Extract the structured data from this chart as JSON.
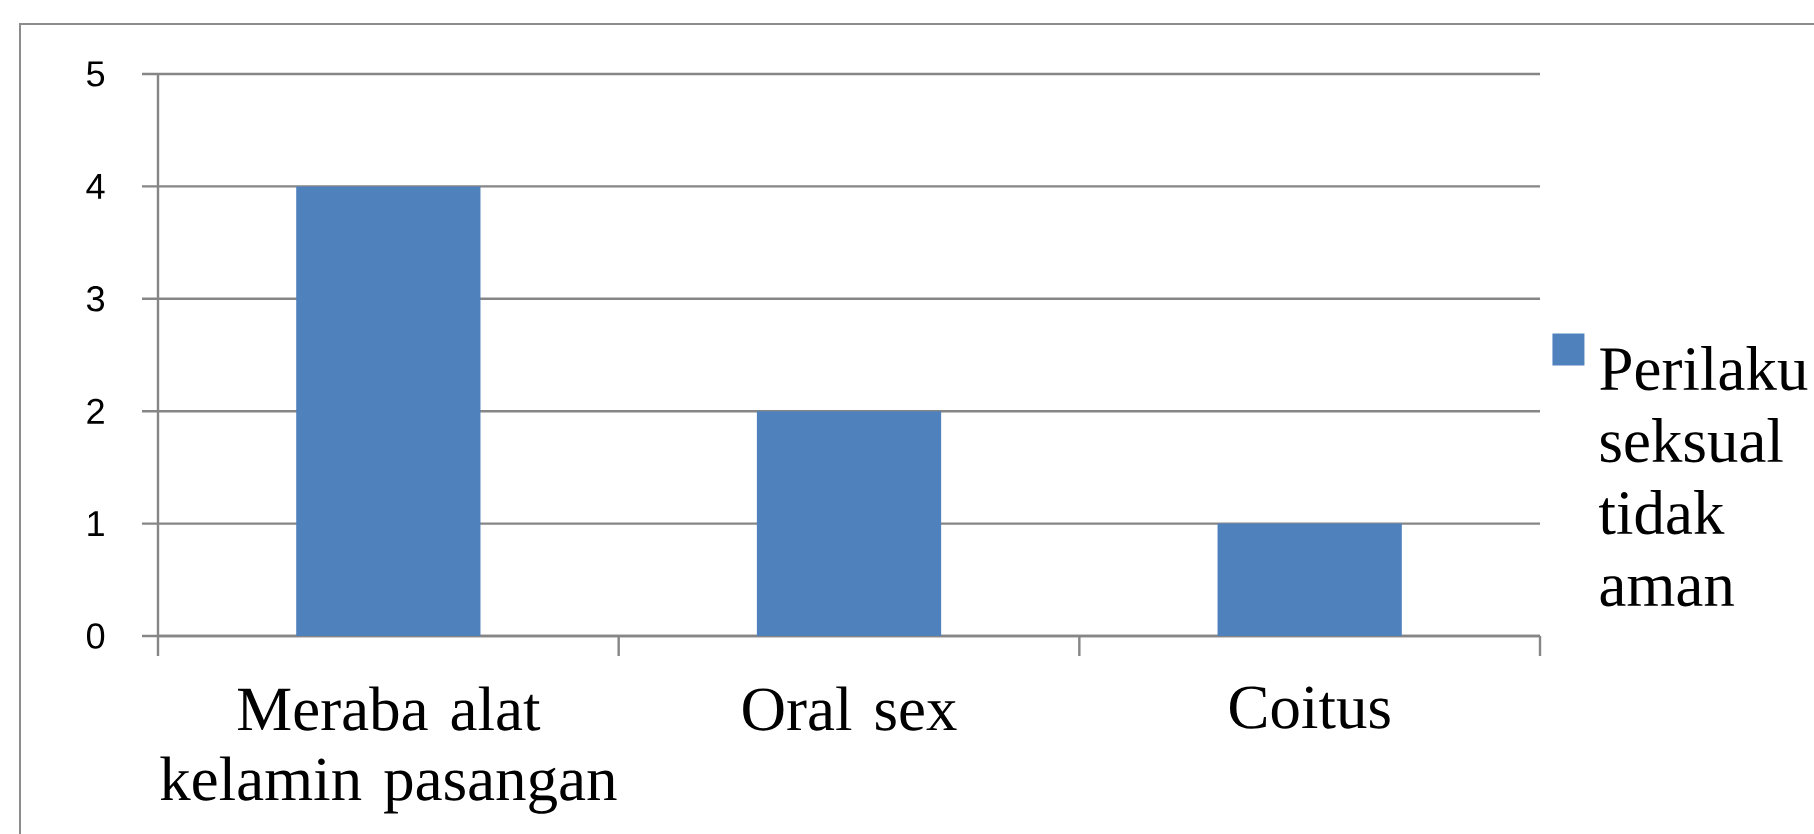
{
  "chart_data": {
    "type": "bar",
    "categories": [
      "Meraba alat kelamin pasangan",
      "Oral sex",
      "Coitus"
    ],
    "series": [
      {
        "name": "Perilaku seksual tidak aman",
        "color": "#4f81bd",
        "values": [
          4,
          2,
          1
        ]
      }
    ],
    "ylim": [
      0,
      5
    ],
    "yticks": [
      0,
      1,
      2,
      3,
      4,
      5
    ],
    "grid": "y",
    "legend": "right"
  }
}
